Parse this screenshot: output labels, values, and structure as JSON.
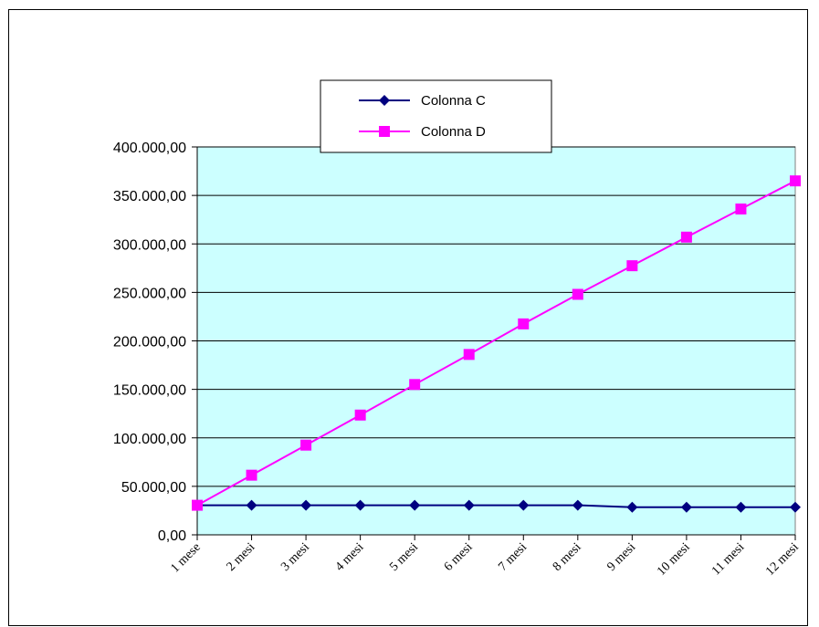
{
  "chart_data": {
    "type": "line",
    "title": "",
    "xlabel": "",
    "ylabel": "",
    "categories": [
      "1 mese",
      "2 mesi",
      "3 mesi",
      "4 mesi",
      "5 mesi",
      "6 mesi",
      "7 mesi",
      "8 mesi",
      "9 mesi",
      "10 mesi",
      "11 mesi",
      "12 mesi"
    ],
    "yticks": [
      "0,00",
      "50.000,00",
      "100.000,00",
      "150.000,00",
      "200.000,00",
      "250.000,00",
      "300.000,00",
      "350.000,00",
      "400.000,00"
    ],
    "ylim": [
      0,
      400000
    ],
    "grid": true,
    "legend_position": "top-center",
    "plot_background": "#ccffff",
    "series": [
      {
        "name": "Colonna C",
        "color": "#000080",
        "marker": "diamond",
        "values": [
          30500,
          30500,
          30500,
          30500,
          30500,
          30500,
          30500,
          30500,
          28500,
          28500,
          28500,
          28500
        ]
      },
      {
        "name": "Colonna D",
        "color": "#ff00ff",
        "marker": "square",
        "values": [
          30500,
          61500,
          92500,
          123500,
          155000,
          186000,
          217500,
          248000,
          277500,
          307000,
          336000,
          365000
        ]
      }
    ]
  }
}
